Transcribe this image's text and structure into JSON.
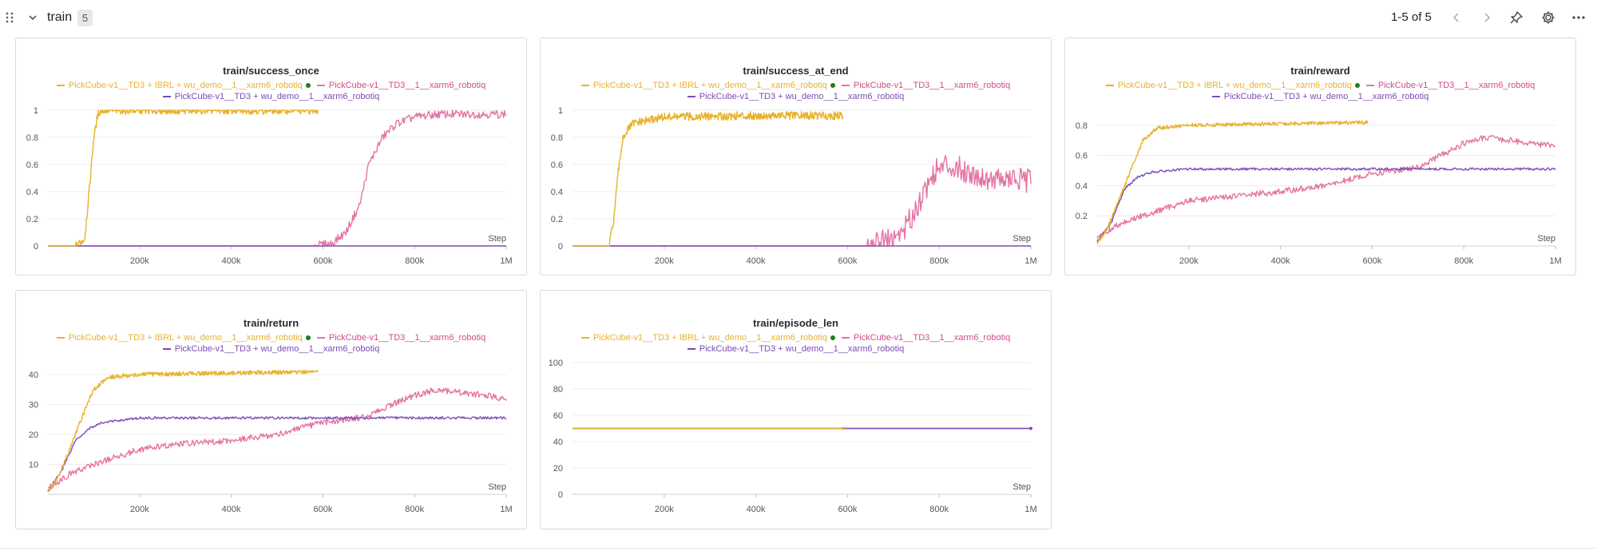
{
  "section": {
    "title": "train",
    "count": "5"
  },
  "pager": {
    "text": "1-5 of 5"
  },
  "icons": {
    "drag": "drag-handle-icon",
    "collapse": "chevron-down-icon",
    "prev": "chevron-left-icon",
    "next": "chevron-right-icon",
    "pin": "pin-icon",
    "settings": "gear-icon",
    "more": "more-horizontal-icon"
  },
  "colors": {
    "series_ibrl": "#e8b22c",
    "series_td3": "#e474a3",
    "series_wu": "#7b4bb7",
    "active_dot": "#1a7f1a",
    "series_td3_legend_text": "#d14a8a"
  },
  "legend": {
    "ibrl": "PickCube-v1__TD3 + IBRL + wu_demo__1__xarm6_robotiq",
    "td3": "PickCube-v1__TD3__1__xarm6_robotiq",
    "wu": "PickCube-v1__TD3 + wu_demo__1__xarm6_robotiq"
  },
  "chart_data": [
    {
      "type": "line",
      "title": "train/success_once",
      "xlabel": "Step",
      "xlim": [
        0,
        1000000
      ],
      "ylim": [
        0,
        1
      ],
      "yticks": [
        "0",
        "0.2",
        "0.4",
        "0.6",
        "0.8",
        "1"
      ],
      "xticks": [
        "200k",
        "400k",
        "600k",
        "800k",
        "1M"
      ],
      "series": [
        {
          "key": "ibrl",
          "x": [
            0,
            60000,
            80000,
            90000,
            100000,
            110000,
            120000,
            200000,
            400000,
            590000
          ],
          "y": [
            0,
            0,
            0.05,
            0.4,
            0.8,
            0.98,
            1,
            1,
            1,
            1
          ]
        },
        {
          "key": "td3",
          "x": [
            0,
            580000,
            620000,
            650000,
            680000,
            700000,
            730000,
            760000,
            800000,
            850000,
            1000000
          ],
          "y": [
            0,
            0,
            0.02,
            0.1,
            0.3,
            0.6,
            0.8,
            0.9,
            0.95,
            0.97,
            0.97
          ]
        },
        {
          "key": "wu",
          "x": [
            0,
            1000000
          ],
          "y": [
            0,
            0
          ]
        }
      ]
    },
    {
      "type": "line",
      "title": "train/success_at_end",
      "xlabel": "Step",
      "xlim": [
        0,
        1000000
      ],
      "ylim": [
        0,
        1
      ],
      "yticks": [
        "0",
        "0.2",
        "0.4",
        "0.6",
        "0.8",
        "1"
      ],
      "xticks": [
        "200k",
        "400k",
        "600k",
        "800k",
        "1M"
      ],
      "series": [
        {
          "key": "ibrl",
          "x": [
            0,
            80000,
            90000,
            100000,
            110000,
            130000,
            200000,
            400000,
            590000
          ],
          "y": [
            0,
            0,
            0.2,
            0.55,
            0.8,
            0.9,
            0.95,
            0.96,
            0.96
          ]
        },
        {
          "key": "td3",
          "x": [
            0,
            640000,
            700000,
            730000,
            760000,
            790000,
            820000,
            860000,
            900000,
            1000000
          ],
          "y": [
            0,
            0,
            0.05,
            0.15,
            0.35,
            0.55,
            0.6,
            0.55,
            0.5,
            0.48
          ]
        },
        {
          "key": "wu",
          "x": [
            0,
            1000000
          ],
          "y": [
            0,
            0
          ]
        }
      ]
    },
    {
      "type": "line",
      "title": "train/reward",
      "xlabel": "Step",
      "xlim": [
        0,
        1000000
      ],
      "ylim": [
        0,
        0.9
      ],
      "yticks": [
        "0.2",
        "0.4",
        "0.6",
        "0.8"
      ],
      "xticks": [
        "200k",
        "400k",
        "600k",
        "800k",
        "1M"
      ],
      "series": [
        {
          "key": "ibrl",
          "x": [
            0,
            20000,
            40000,
            60000,
            80000,
            100000,
            130000,
            200000,
            400000,
            590000
          ],
          "y": [
            0.02,
            0.1,
            0.25,
            0.4,
            0.55,
            0.7,
            0.78,
            0.8,
            0.81,
            0.82
          ]
        },
        {
          "key": "td3",
          "x": [
            0,
            50000,
            100000,
            200000,
            300000,
            400000,
            500000,
            600000,
            700000,
            750000,
            800000,
            850000,
            900000,
            1000000
          ],
          "y": [
            0.05,
            0.15,
            0.2,
            0.3,
            0.33,
            0.36,
            0.4,
            0.48,
            0.52,
            0.6,
            0.68,
            0.72,
            0.7,
            0.66
          ]
        },
        {
          "key": "wu",
          "x": [
            0,
            30000,
            60000,
            90000,
            120000,
            200000,
            400000,
            600000,
            800000,
            1000000
          ],
          "y": [
            0.03,
            0.15,
            0.38,
            0.46,
            0.49,
            0.51,
            0.51,
            0.51,
            0.51,
            0.51
          ]
        }
      ]
    },
    {
      "type": "line",
      "title": "train/return",
      "xlabel": "Step",
      "xlim": [
        0,
        1000000
      ],
      "ylim": [
        0,
        44
      ],
      "yticks": [
        "10",
        "20",
        "30",
        "40"
      ],
      "xticks": [
        "200k",
        "400k",
        "600k",
        "800k",
        "1M"
      ],
      "series": [
        {
          "key": "ibrl",
          "x": [
            0,
            20000,
            40000,
            60000,
            80000,
            100000,
            130000,
            200000,
            400000,
            590000
          ],
          "y": [
            1,
            5,
            12,
            20,
            28,
            35,
            39,
            40,
            40.5,
            41
          ]
        },
        {
          "key": "td3",
          "x": [
            0,
            50000,
            100000,
            200000,
            300000,
            400000,
            500000,
            600000,
            700000,
            750000,
            800000,
            850000,
            900000,
            1000000
          ],
          "y": [
            2,
            7,
            10,
            15,
            17,
            18,
            20,
            24,
            26,
            30,
            33,
            35,
            34,
            32
          ]
        },
        {
          "key": "wu",
          "x": [
            0,
            30000,
            60000,
            90000,
            120000,
            200000,
            400000,
            600000,
            800000,
            1000000
          ],
          "y": [
            1,
            8,
            18,
            22,
            24,
            25.5,
            25.5,
            25.5,
            25.5,
            25.5
          ]
        }
      ]
    },
    {
      "type": "line",
      "title": "train/episode_len",
      "xlabel": "Step",
      "xlim": [
        0,
        1000000
      ],
      "ylim": [
        0,
        100
      ],
      "yticks": [
        "0",
        "20",
        "40",
        "60",
        "80",
        "100"
      ],
      "xticks": [
        "200k",
        "400k",
        "600k",
        "800k",
        "1M"
      ],
      "series": [
        {
          "key": "ibrl",
          "x": [
            0,
            590000
          ],
          "y": [
            50,
            50
          ]
        },
        {
          "key": "td3",
          "x": [
            0,
            1000000
          ],
          "y": [
            50,
            50
          ]
        },
        {
          "key": "wu",
          "x": [
            0,
            1000000
          ],
          "y": [
            50,
            50
          ]
        }
      ]
    }
  ]
}
